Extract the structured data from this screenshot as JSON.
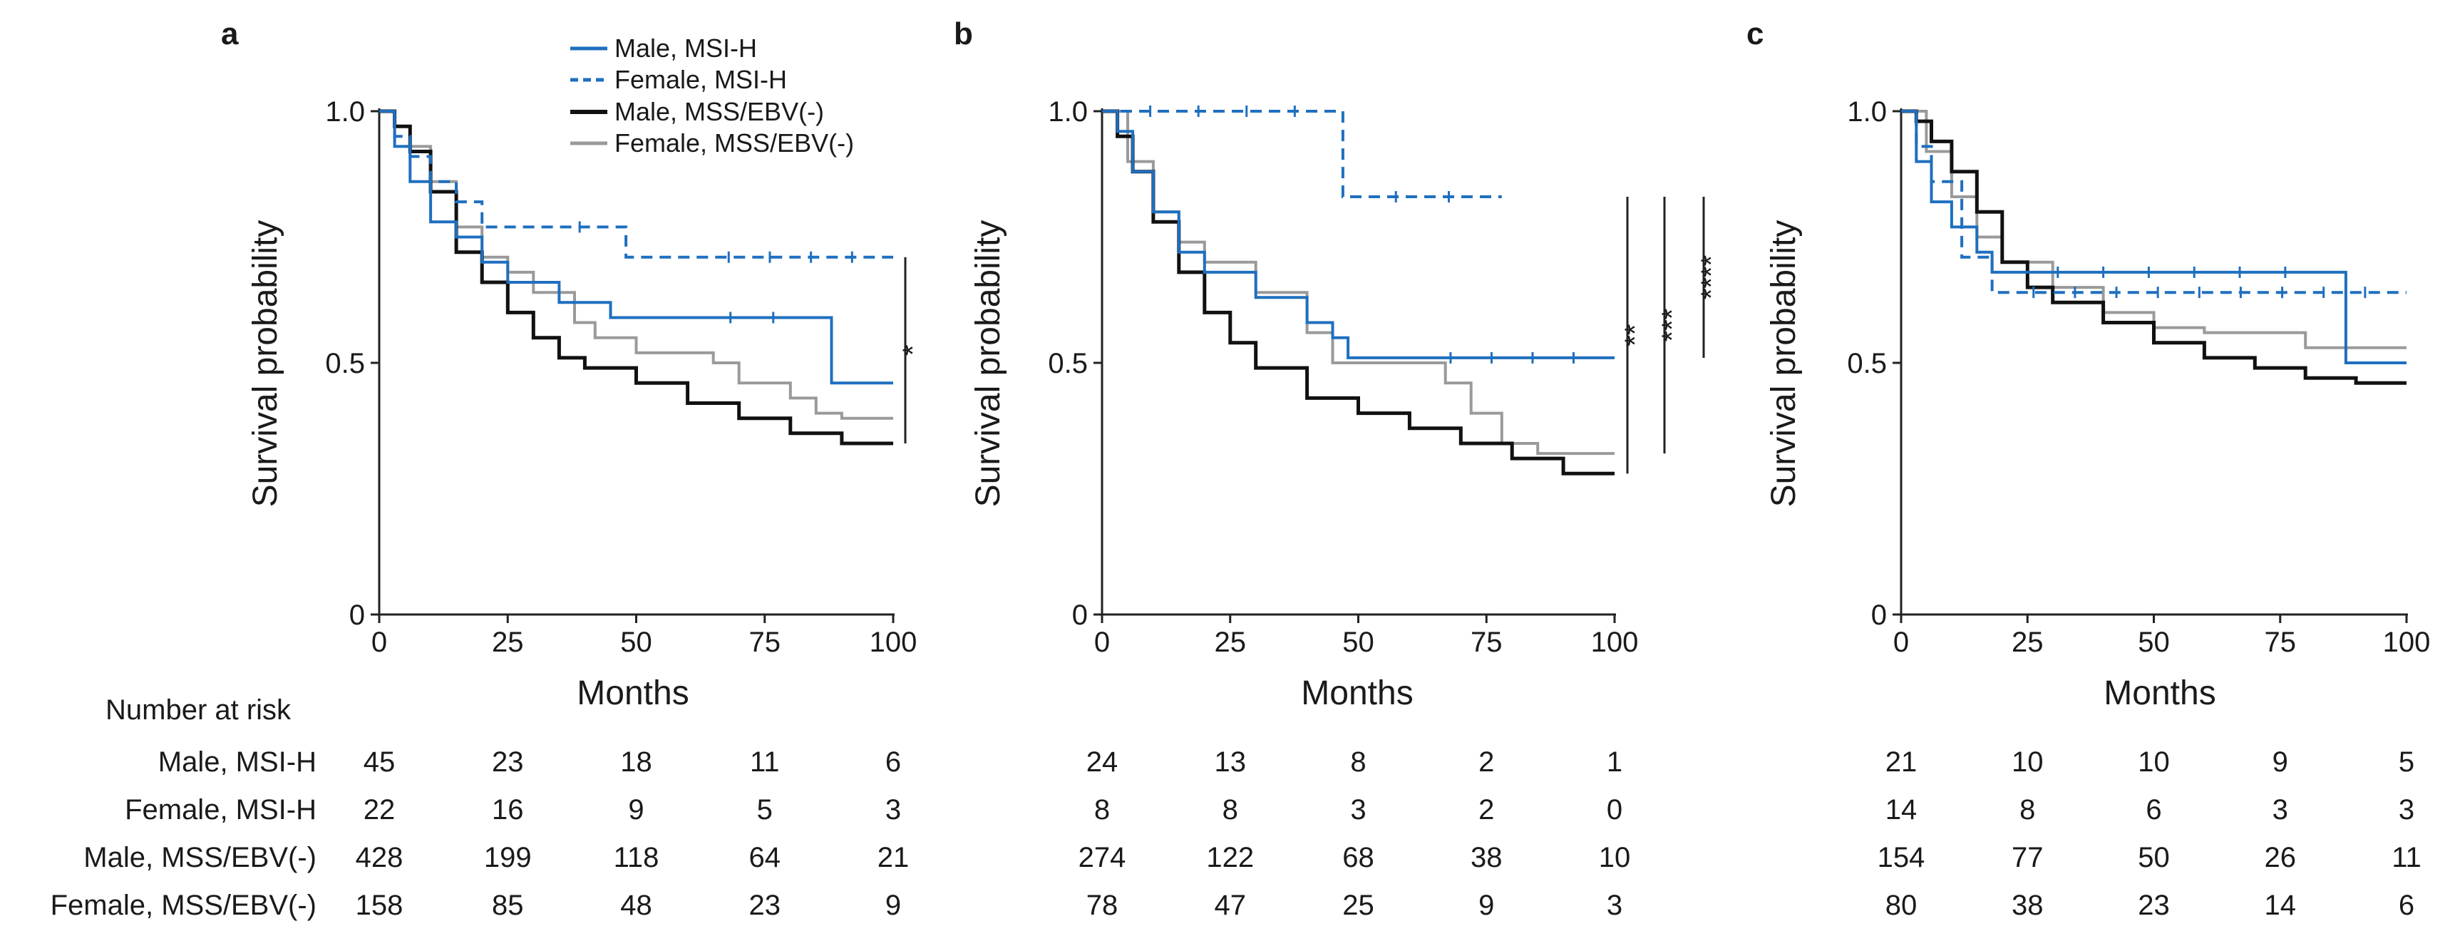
{
  "figure": {
    "risk_title": "Number at risk",
    "risk_row_labels": [
      "Male, MSI-H",
      "Female, MSI-H",
      "Male, MSS/EBV(-)",
      "Female, MSS/EBV(-)"
    ]
  },
  "legend": {
    "items": [
      {
        "label": "Male, MSI-H",
        "color": "#1f6fbf",
        "style": "solid"
      },
      {
        "label": "Female, MSI-H",
        "color": "#1f6fbf",
        "style": "dashed"
      },
      {
        "label": "Male, MSS/EBV(-)",
        "color": "#111111",
        "style": "solid"
      },
      {
        "label": "Female, MSS/EBV(-)",
        "color": "#9a9a9a",
        "style": "solid"
      }
    ]
  },
  "chart_data": [
    {
      "type": "line",
      "panel": "a",
      "title": "",
      "xlabel": "Months",
      "ylabel": "Survival probability",
      "xlim": [
        0,
        100
      ],
      "ylim": [
        0,
        1
      ],
      "xticks": [
        0,
        25,
        50,
        75,
        100
      ],
      "yticks": [
        0,
        0.5,
        1.0
      ],
      "ytick_labels": [
        "0",
        "0.5",
        "1.0"
      ],
      "significance": [
        {
          "label": "*",
          "y_range": [
            0.34,
            0.71
          ]
        }
      ],
      "series": [
        {
          "name": "Male, MSI-H",
          "x": [
            0,
            3,
            6,
            10,
            15,
            20,
            25,
            35,
            45,
            60,
            85,
            88,
            100
          ],
          "y": [
            1.0,
            0.93,
            0.86,
            0.78,
            0.75,
            0.7,
            0.66,
            0.62,
            0.59,
            0.59,
            0.59,
            0.46,
            0.46
          ]
        },
        {
          "name": "Female, MSI-H",
          "x": [
            0,
            3,
            6,
            10,
            15,
            20,
            30,
            48,
            60,
            100
          ],
          "y": [
            1.0,
            0.95,
            0.91,
            0.86,
            0.82,
            0.77,
            0.77,
            0.71,
            0.71,
            0.71
          ]
        },
        {
          "name": "Male, MSS/EBV(-)",
          "x": [
            0,
            3,
            6,
            10,
            15,
            20,
            25,
            30,
            35,
            40,
            50,
            60,
            70,
            80,
            90,
            100
          ],
          "y": [
            1.0,
            0.97,
            0.92,
            0.84,
            0.72,
            0.66,
            0.6,
            0.55,
            0.51,
            0.49,
            0.46,
            0.42,
            0.39,
            0.36,
            0.34,
            0.34
          ]
        },
        {
          "name": "Female, MSS/EBV(-)",
          "x": [
            0,
            3,
            6,
            10,
            15,
            20,
            25,
            30,
            38,
            42,
            50,
            65,
            70,
            80,
            85,
            90,
            100
          ],
          "y": [
            1.0,
            0.97,
            0.93,
            0.86,
            0.77,
            0.71,
            0.68,
            0.64,
            0.58,
            0.55,
            0.52,
            0.5,
            0.46,
            0.43,
            0.4,
            0.39,
            0.39
          ]
        }
      ],
      "risk_table": [
        [
          45,
          23,
          18,
          11,
          6
        ],
        [
          22,
          16,
          9,
          5,
          3
        ],
        [
          428,
          199,
          118,
          64,
          21
        ],
        [
          158,
          85,
          48,
          23,
          9
        ]
      ]
    },
    {
      "type": "line",
      "panel": "b",
      "title": "",
      "xlabel": "Months",
      "ylabel": "Survival probability",
      "xlim": [
        0,
        100
      ],
      "ylim": [
        0,
        1
      ],
      "xticks": [
        0,
        25,
        50,
        75,
        100
      ],
      "yticks": [
        0,
        0.5,
        1.0
      ],
      "ytick_labels": [
        "0",
        "0.5",
        "1.0"
      ],
      "significance": [
        {
          "label": "**",
          "y_range": [
            0.28,
            0.83
          ]
        },
        {
          "label": "***",
          "y_range": [
            0.32,
            0.83
          ]
        },
        {
          "label": "****",
          "y_range": [
            0.51,
            0.83
          ]
        }
      ],
      "series": [
        {
          "name": "Male, MSI-H",
          "x": [
            0,
            3,
            6,
            10,
            15,
            20,
            30,
            40,
            45,
            48,
            60,
            100
          ],
          "y": [
            1.0,
            0.96,
            0.88,
            0.8,
            0.72,
            0.68,
            0.63,
            0.58,
            0.55,
            0.51,
            0.51,
            0.51
          ]
        },
        {
          "name": "Female, MSI-H",
          "x": [
            0,
            47,
            78
          ],
          "y": [
            1.0,
            0.83,
            0.83
          ]
        },
        {
          "name": "Male, MSS/EBV(-)",
          "x": [
            0,
            3,
            6,
            10,
            15,
            20,
            25,
            30,
            40,
            50,
            60,
            70,
            80,
            90,
            100
          ],
          "y": [
            1.0,
            0.95,
            0.88,
            0.78,
            0.68,
            0.6,
            0.54,
            0.49,
            0.43,
            0.4,
            0.37,
            0.34,
            0.31,
            0.28,
            0.28
          ]
        },
        {
          "name": "Female, MSS/EBV(-)",
          "x": [
            0,
            5,
            10,
            15,
            20,
            30,
            40,
            45,
            60,
            67,
            72,
            78,
            85,
            100
          ],
          "y": [
            1.0,
            0.9,
            0.8,
            0.74,
            0.7,
            0.64,
            0.56,
            0.5,
            0.5,
            0.46,
            0.4,
            0.34,
            0.32,
            0.32
          ]
        }
      ],
      "risk_table": [
        [
          24,
          13,
          8,
          2,
          1
        ],
        [
          8,
          8,
          3,
          2,
          0
        ],
        [
          274,
          122,
          68,
          38,
          10
        ],
        [
          78,
          47,
          25,
          9,
          3
        ]
      ]
    },
    {
      "type": "line",
      "panel": "c",
      "title": "",
      "xlabel": "Months",
      "ylabel": "Survival probability",
      "xlim": [
        0,
        100
      ],
      "ylim": [
        0,
        1
      ],
      "xticks": [
        0,
        25,
        50,
        75,
        100
      ],
      "yticks": [
        0,
        0.5,
        1.0
      ],
      "ytick_labels": [
        "0",
        "0.5",
        "1.0"
      ],
      "significance": [],
      "series": [
        {
          "name": "Male, MSI-H",
          "x": [
            0,
            3,
            6,
            10,
            15,
            18,
            22,
            85,
            88,
            100
          ],
          "y": [
            1.0,
            0.9,
            0.82,
            0.77,
            0.72,
            0.68,
            0.68,
            0.68,
            0.5,
            0.5
          ]
        },
        {
          "name": "Female, MSI-H",
          "x": [
            0,
            3,
            6,
            12,
            18,
            100
          ],
          "y": [
            1.0,
            0.93,
            0.86,
            0.71,
            0.64,
            0.64
          ]
        },
        {
          "name": "Male, MSS/EBV(-)",
          "x": [
            0,
            3,
            6,
            10,
            15,
            20,
            25,
            30,
            40,
            50,
            60,
            70,
            80,
            90,
            100
          ],
          "y": [
            1.0,
            0.98,
            0.94,
            0.88,
            0.8,
            0.7,
            0.65,
            0.62,
            0.58,
            0.54,
            0.51,
            0.49,
            0.47,
            0.46,
            0.46
          ]
        },
        {
          "name": "Female, MSS/EBV(-)",
          "x": [
            0,
            5,
            10,
            15,
            20,
            30,
            40,
            50,
            60,
            70,
            80,
            90,
            100
          ],
          "y": [
            1.0,
            0.92,
            0.83,
            0.75,
            0.7,
            0.65,
            0.6,
            0.57,
            0.56,
            0.56,
            0.53,
            0.53,
            0.53
          ]
        }
      ],
      "risk_table": [
        [
          21,
          10,
          10,
          9,
          5
        ],
        [
          14,
          8,
          6,
          3,
          3
        ],
        [
          154,
          77,
          50,
          26,
          11
        ],
        [
          80,
          38,
          23,
          14,
          6
        ]
      ]
    }
  ]
}
